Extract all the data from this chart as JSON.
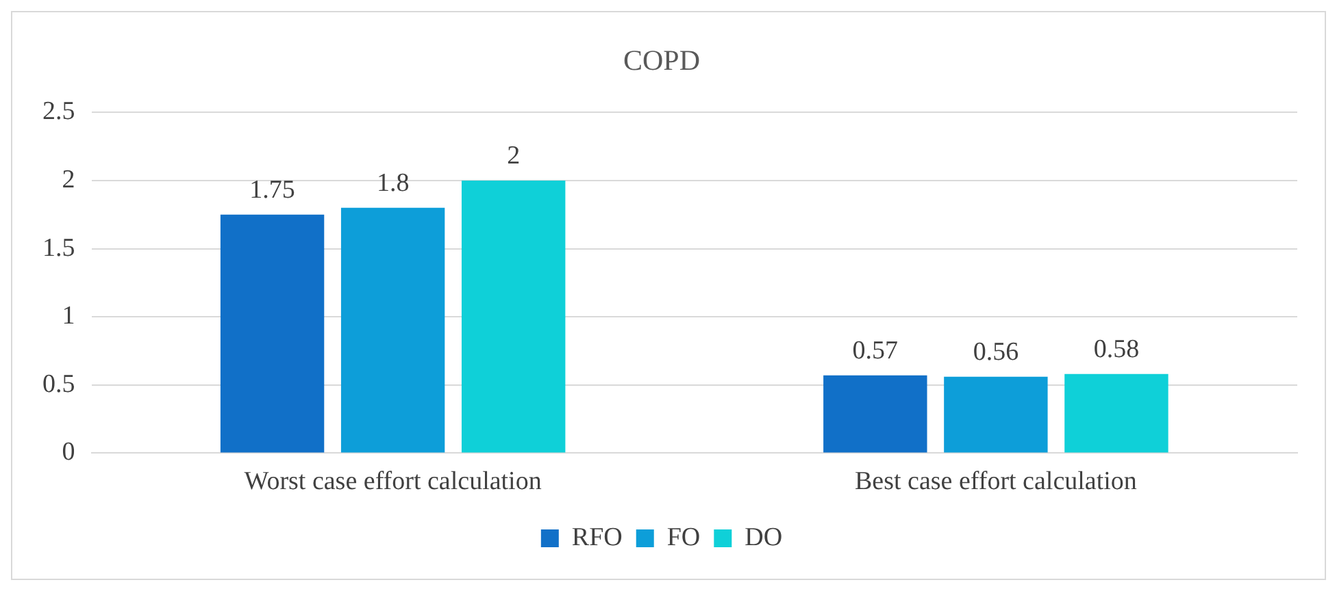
{
  "chart_data": {
    "type": "bar",
    "title": "COPD",
    "categories": [
      "Worst case effort calculation",
      "Best case effort calculation"
    ],
    "series": [
      {
        "name": "RFO",
        "color": "#1170c8",
        "values": [
          1.75,
          0.57
        ]
      },
      {
        "name": "FO",
        "color": "#0d9ed9",
        "values": [
          1.8,
          0.56
        ]
      },
      {
        "name": "DO",
        "color": "#0fd0d8",
        "values": [
          2,
          0.58
        ]
      }
    ],
    "ylim": [
      0,
      2.5
    ],
    "yticks": [
      0,
      0.5,
      1,
      1.5,
      2,
      2.5
    ],
    "grid": "y",
    "legend": "bottom",
    "data_labels": true
  }
}
